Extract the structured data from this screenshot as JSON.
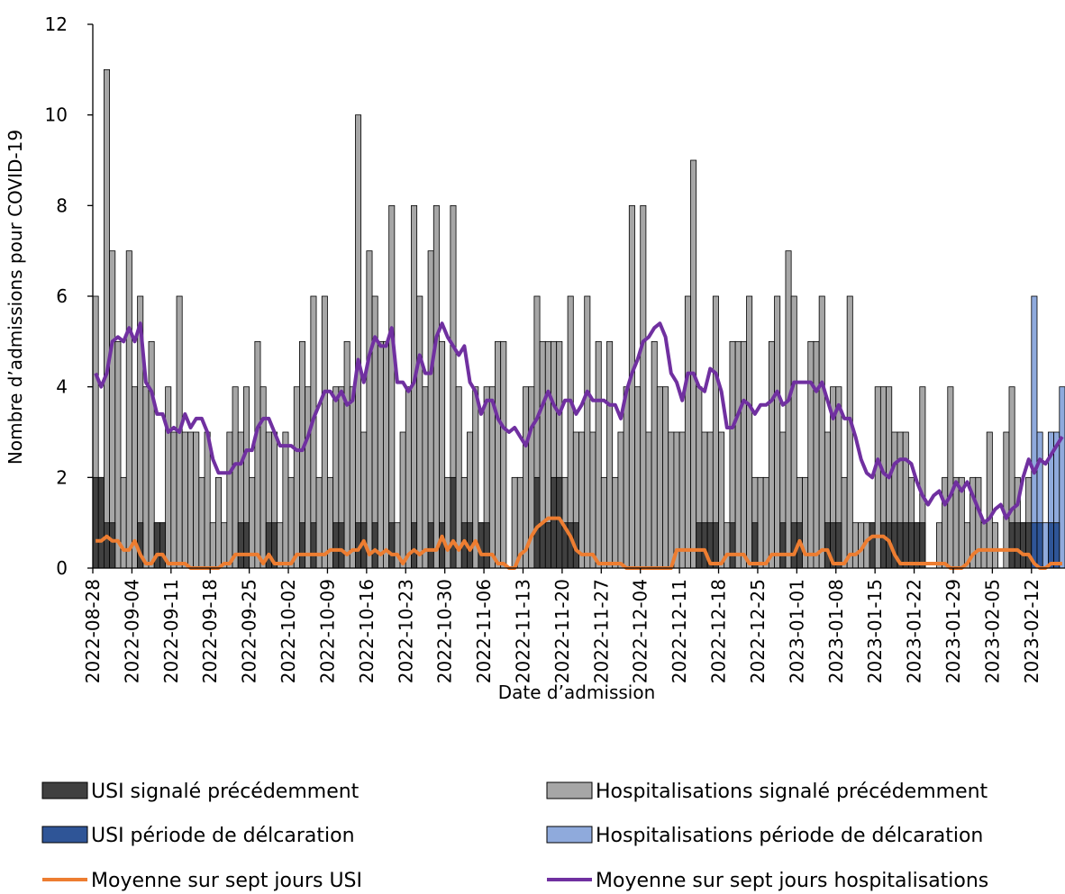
{
  "chart_data": {
    "type": "bar",
    "x_label": "Date d’admission",
    "y_label": "Nombre d’admissions pour COVID-19",
    "categories": [
      "2022-08-28",
      null,
      null,
      null,
      null,
      null,
      null,
      "2022-09-04",
      null,
      null,
      null,
      null,
      null,
      null,
      "2022-09-11",
      null,
      null,
      null,
      null,
      null,
      null,
      "2022-09-18",
      null,
      null,
      null,
      null,
      null,
      null,
      "2022-09-25",
      null,
      null,
      null,
      null,
      null,
      null,
      "2022-10-02",
      null,
      null,
      null,
      null,
      null,
      null,
      "2022-10-09",
      null,
      null,
      null,
      null,
      null,
      null,
      "2022-10-16",
      null,
      null,
      null,
      null,
      null,
      null,
      "2022-10-23",
      null,
      null,
      null,
      null,
      null,
      null,
      "2022-10-30",
      null,
      null,
      null,
      null,
      null,
      null,
      "2022-11-06",
      null,
      null,
      null,
      null,
      null,
      null,
      "2022-11-13",
      null,
      null,
      null,
      null,
      null,
      null,
      "2022-11-20",
      null,
      null,
      null,
      null,
      null,
      null,
      "2022-11-27",
      null,
      null,
      null,
      null,
      null,
      null,
      "2022-12-04",
      null,
      null,
      null,
      null,
      null,
      null,
      "2022-12-11",
      null,
      null,
      null,
      null,
      null,
      null,
      "2022-12-18",
      null,
      null,
      null,
      null,
      null,
      null,
      "2022-12-25",
      null,
      null,
      null,
      null,
      null,
      null,
      "2023-01-01",
      null,
      null,
      null,
      null,
      null,
      null,
      "2023-01-08",
      null,
      null,
      null,
      null,
      null,
      null,
      "2023-01-15",
      null,
      null,
      null,
      null,
      null,
      null,
      "2023-01-22",
      null,
      null,
      null,
      null,
      null,
      null,
      "2023-01-29",
      null,
      null,
      null,
      null,
      null,
      null,
      "2023-02-05",
      null,
      null,
      null,
      null,
      null,
      null,
      "2023-02-12",
      null,
      null,
      null,
      null,
      null
    ],
    "ylim": [
      0,
      12
    ],
    "yticks": [
      0,
      2,
      4,
      6,
      8,
      10,
      12
    ],
    "series": [
      {
        "name": "Hospitalisations signalé précédemment",
        "type": "bar",
        "color": "#a6a6a6",
        "values": [
          6,
          2,
          11,
          7,
          5,
          2,
          7,
          4,
          6,
          4,
          5,
          1,
          1,
          4,
          3,
          6,
          3,
          3,
          3,
          2,
          3,
          1,
          2,
          1,
          3,
          4,
          3,
          4,
          2,
          5,
          4,
          3,
          3,
          1,
          3,
          2,
          4,
          5,
          4,
          6,
          2,
          6,
          2,
          4,
          4,
          5,
          4,
          10,
          3,
          7,
          6,
          5,
          5,
          8,
          1,
          3,
          4,
          8,
          6,
          4,
          7,
          8,
          5,
          2,
          8,
          4,
          2,
          3,
          4,
          1,
          4,
          4,
          5,
          5,
          0,
          2,
          2,
          4,
          4,
          6,
          5,
          5,
          5,
          5,
          2,
          6,
          3,
          3,
          6,
          3,
          5,
          2,
          5,
          2,
          3,
          4,
          8,
          4,
          8,
          3,
          5,
          4,
          4,
          3,
          3,
          3,
          6,
          9,
          4,
          3,
          3,
          6,
          3,
          1,
          5,
          5,
          5,
          6,
          2,
          2,
          2,
          5,
          6,
          3,
          7,
          6,
          2,
          2,
          5,
          5,
          6,
          3,
          4,
          4,
          2,
          6,
          1,
          1,
          1,
          1,
          4,
          4,
          4,
          3,
          3,
          3,
          2,
          1,
          4,
          0,
          0,
          1,
          2,
          4,
          2,
          2,
          1,
          2,
          2,
          1,
          3,
          1,
          0,
          3,
          4,
          2,
          1,
          2,
          null,
          null,
          null,
          null,
          null,
          null
        ]
      },
      {
        "name": "USI signalé précédemment",
        "type": "bar",
        "color": "#404040",
        "values": [
          2,
          2,
          1,
          1,
          0,
          0,
          0,
          0,
          1,
          0,
          0,
          1,
          1,
          0,
          0,
          0,
          0,
          0,
          0,
          0,
          0,
          0,
          0,
          0,
          0,
          0,
          1,
          1,
          0,
          0,
          0,
          1,
          1,
          0,
          0,
          0,
          0,
          1,
          0,
          1,
          0,
          0,
          0,
          1,
          1,
          0,
          0,
          1,
          1,
          0,
          1,
          0,
          0,
          1,
          0,
          0,
          0,
          1,
          0,
          0,
          1,
          0,
          1,
          0,
          2,
          0,
          1,
          1,
          0,
          1,
          1,
          0,
          0,
          0,
          0,
          0,
          0,
          0,
          0,
          2,
          1,
          1,
          2,
          2,
          1,
          1,
          1,
          0,
          0,
          0,
          0,
          0,
          0,
          0,
          0,
          0,
          0,
          0,
          0,
          0,
          0,
          0,
          0,
          0,
          0,
          0,
          0,
          0,
          1,
          1,
          1,
          1,
          0,
          0,
          1,
          0,
          0,
          0,
          1,
          0,
          0,
          0,
          0,
          1,
          0,
          1,
          1,
          0,
          0,
          0,
          0,
          1,
          1,
          1,
          0,
          0,
          0,
          0,
          0,
          1,
          0,
          1,
          1,
          1,
          1,
          1,
          1,
          1,
          1,
          0,
          0,
          0,
          0,
          0,
          0,
          0,
          0,
          0,
          0,
          0,
          0,
          0,
          0,
          0,
          1,
          1,
          1,
          1,
          null,
          null,
          null,
          null,
          null,
          null
        ]
      },
      {
        "name": "Hospitalisations période de délcaration",
        "type": "bar",
        "color": "#8faadc",
        "values": [
          null,
          null,
          null,
          null,
          null,
          null,
          null,
          null,
          null,
          null,
          null,
          null,
          null,
          null,
          null,
          null,
          null,
          null,
          null,
          null,
          null,
          null,
          null,
          null,
          null,
          null,
          null,
          null,
          null,
          null,
          null,
          null,
          null,
          null,
          null,
          null,
          null,
          null,
          null,
          null,
          null,
          null,
          null,
          null,
          null,
          null,
          null,
          null,
          null,
          null,
          null,
          null,
          null,
          null,
          null,
          null,
          null,
          null,
          null,
          null,
          null,
          null,
          null,
          null,
          null,
          null,
          null,
          null,
          null,
          null,
          null,
          null,
          null,
          null,
          null,
          null,
          null,
          null,
          null,
          null,
          null,
          null,
          null,
          null,
          null,
          null,
          null,
          null,
          null,
          null,
          null,
          null,
          null,
          null,
          null,
          null,
          null,
          null,
          null,
          null,
          null,
          null,
          null,
          null,
          null,
          null,
          null,
          null,
          null,
          null,
          null,
          null,
          null,
          null,
          null,
          null,
          null,
          null,
          null,
          null,
          null,
          null,
          null,
          null,
          null,
          null,
          null,
          null,
          null,
          null,
          null,
          null,
          null,
          null,
          null,
          null,
          null,
          null,
          null,
          null,
          null,
          null,
          null,
          null,
          null,
          null,
          null,
          null,
          null,
          null,
          null,
          null,
          null,
          null,
          null,
          null,
          null,
          null,
          null,
          null,
          null,
          null,
          null,
          null,
          null,
          null,
          null,
          null,
          6,
          3,
          1,
          3,
          3,
          4
        ]
      },
      {
        "name": "USI période de délcaration",
        "type": "bar",
        "color": "#2f5597",
        "values": [
          null,
          null,
          null,
          null,
          null,
          null,
          null,
          null,
          null,
          null,
          null,
          null,
          null,
          null,
          null,
          null,
          null,
          null,
          null,
          null,
          null,
          null,
          null,
          null,
          null,
          null,
          null,
          null,
          null,
          null,
          null,
          null,
          null,
          null,
          null,
          null,
          null,
          null,
          null,
          null,
          null,
          null,
          null,
          null,
          null,
          null,
          null,
          null,
          null,
          null,
          null,
          null,
          null,
          null,
          null,
          null,
          null,
          null,
          null,
          null,
          null,
          null,
          null,
          null,
          null,
          null,
          null,
          null,
          null,
          null,
          null,
          null,
          null,
          null,
          null,
          null,
          null,
          null,
          null,
          null,
          null,
          null,
          null,
          null,
          null,
          null,
          null,
          null,
          null,
          null,
          null,
          null,
          null,
          null,
          null,
          null,
          null,
          null,
          null,
          null,
          null,
          null,
          null,
          null,
          null,
          null,
          null,
          null,
          null,
          null,
          null,
          null,
          null,
          null,
          null,
          null,
          null,
          null,
          null,
          null,
          null,
          null,
          null,
          null,
          null,
          null,
          null,
          null,
          null,
          null,
          null,
          null,
          null,
          null,
          null,
          null,
          null,
          null,
          null,
          null,
          null,
          null,
          null,
          null,
          null,
          null,
          null,
          null,
          null,
          null,
          null,
          null,
          null,
          null,
          null,
          null,
          null,
          null,
          null,
          null,
          null,
          null,
          null,
          null,
          null,
          null,
          null,
          null,
          1,
          1,
          0,
          1,
          1,
          0
        ]
      },
      {
        "name": "Moyenne sur sept jours USI",
        "type": "line",
        "color": "#ed7d31",
        "values": [
          0.6,
          0.6,
          0.7,
          0.6,
          0.6,
          0.4,
          0.4,
          0.6,
          0.3,
          0.1,
          0.1,
          0.3,
          0.3,
          0.1,
          0.1,
          0.1,
          0.1,
          0,
          0,
          0,
          0,
          0,
          0,
          0.1,
          0.1,
          0.3,
          0.3,
          0.3,
          0.3,
          0.3,
          0.1,
          0.3,
          0.1,
          0.1,
          0.1,
          0.1,
          0.3,
          0.3,
          0.3,
          0.3,
          0.3,
          0.3,
          0.4,
          0.4,
          0.4,
          0.3,
          0.4,
          0.4,
          0.6,
          0.3,
          0.4,
          0.3,
          0.4,
          0.3,
          0.3,
          0.1,
          0.3,
          0.4,
          0.3,
          0.4,
          0.4,
          0.4,
          0.7,
          0.4,
          0.6,
          0.4,
          0.6,
          0.4,
          0.6,
          0.3,
          0.3,
          0.3,
          0.1,
          0.1,
          0,
          0,
          0.3,
          0.4,
          0.7,
          0.9,
          1.0,
          1.1,
          1.1,
          1.1,
          0.9,
          0.7,
          0.4,
          0.3,
          0.3,
          0.3,
          0.1,
          0.1,
          0.1,
          0.1,
          0.1,
          0,
          0,
          0,
          0,
          0,
          0,
          0,
          0,
          0,
          0.4,
          0.4,
          0.4,
          0.4,
          0.4,
          0.4,
          0.1,
          0.1,
          0.1,
          0.3,
          0.3,
          0.3,
          0.3,
          0.1,
          0.1,
          0.1,
          0.1,
          0.3,
          0.3,
          0.3,
          0.3,
          0.3,
          0.6,
          0.3,
          0.3,
          0.3,
          0.4,
          0.4,
          0.1,
          0.1,
          0.1,
          0.3,
          0.3,
          0.4,
          0.6,
          0.7,
          0.7,
          0.7,
          0.6,
          0.3,
          0.1,
          0.1,
          0.1,
          0.1,
          0.1,
          0.1,
          0.1,
          0.1,
          0.1,
          0,
          0,
          0,
          0.1,
          0.3,
          0.4,
          0.4,
          0.4,
          0.4,
          0.4,
          0.4,
          0.4,
          0.4,
          0.3,
          0.3,
          0.1,
          0,
          0,
          0.1,
          0.1,
          0.1
        ]
      },
      {
        "name": "Moyenne sur sept jours hospitalisations",
        "type": "line",
        "color": "#7030a0",
        "values": [
          4.3,
          4.0,
          4.3,
          5.0,
          5.1,
          5.0,
          5.3,
          5.0,
          5.4,
          4.1,
          3.9,
          3.4,
          3.4,
          3.0,
          3.1,
          3.0,
          3.4,
          3.1,
          3.3,
          3.3,
          3.0,
          2.4,
          2.1,
          2.1,
          2.1,
          2.3,
          2.3,
          2.6,
          2.6,
          3.1,
          3.3,
          3.3,
          3.0,
          2.7,
          2.7,
          2.7,
          2.6,
          2.6,
          2.9,
          3.3,
          3.6,
          3.9,
          3.9,
          3.7,
          3.9,
          3.6,
          3.7,
          4.6,
          4.1,
          4.7,
          5.1,
          4.9,
          4.9,
          5.3,
          4.1,
          4.1,
          3.9,
          4.1,
          4.7,
          4.3,
          4.3,
          5.1,
          5.4,
          5.1,
          4.9,
          4.7,
          4.9,
          4.1,
          3.9,
          3.4,
          3.7,
          3.7,
          3.3,
          3.1,
          3.0,
          3.1,
          2.9,
          2.7,
          3.1,
          3.3,
          3.6,
          3.9,
          3.6,
          3.4,
          3.7,
          3.7,
          3.4,
          3.6,
          3.9,
          3.7,
          3.7,
          3.7,
          3.6,
          3.6,
          3.3,
          3.9,
          4.3,
          4.6,
          5.0,
          5.1,
          5.3,
          5.4,
          5.1,
          4.3,
          4.1,
          3.7,
          4.3,
          4.3,
          4.0,
          3.9,
          4.4,
          4.3,
          3.9,
          3.1,
          3.1,
          3.4,
          3.7,
          3.6,
          3.4,
          3.6,
          3.6,
          3.7,
          3.9,
          3.6,
          3.7,
          4.1,
          4.1,
          4.1,
          4.1,
          3.9,
          4.1,
          3.7,
          3.3,
          3.6,
          3.3,
          3.3,
          2.9,
          2.4,
          2.1,
          2.0,
          2.4,
          2.1,
          2.0,
          2.3,
          2.4,
          2.4,
          2.3,
          1.9,
          1.6,
          1.4,
          1.6,
          1.7,
          1.4,
          1.6,
          1.9,
          1.7,
          1.9,
          1.6,
          1.3,
          1.0,
          1.1,
          1.3,
          1.4,
          1.1,
          1.3,
          1.4,
          2.0,
          2.4,
          2.1,
          2.4,
          2.3,
          2.5,
          2.7,
          2.9
        ]
      }
    ]
  }
}
